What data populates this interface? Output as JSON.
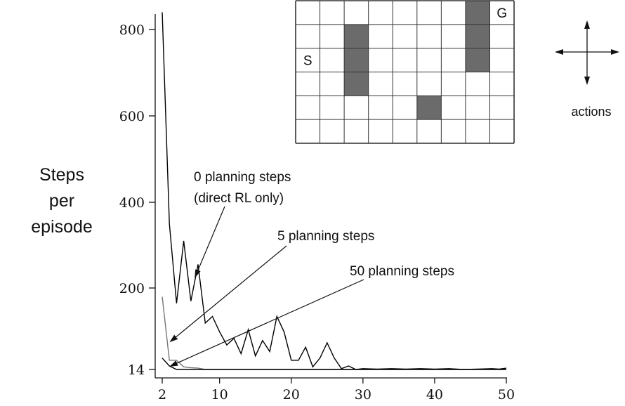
{
  "chart_data": {
    "type": "line",
    "ylabel_lines": [
      "Steps",
      "per",
      "episode"
    ],
    "xlim": [
      2,
      50
    ],
    "x_ticks": [
      2,
      10,
      20,
      30,
      40,
      50
    ],
    "y_ticks": [
      14,
      200,
      400,
      600,
      800
    ],
    "grid": false,
    "series": [
      {
        "name": "0 planning steps",
        "color": "#000000",
        "points": [
          [
            2,
            840
          ],
          [
            3,
            350
          ],
          [
            4,
            165
          ],
          [
            5,
            310
          ],
          [
            6,
            170
          ],
          [
            7,
            255
          ],
          [
            8,
            120
          ],
          [
            9,
            135
          ],
          [
            10,
            100
          ],
          [
            11,
            70
          ],
          [
            12,
            85
          ],
          [
            13,
            50
          ],
          [
            14,
            105
          ],
          [
            15,
            45
          ],
          [
            16,
            80
          ],
          [
            17,
            55
          ],
          [
            18,
            135
          ],
          [
            19,
            100
          ],
          [
            20,
            35
          ],
          [
            21,
            35
          ],
          [
            22,
            65
          ],
          [
            23,
            20
          ],
          [
            24,
            40
          ],
          [
            25,
            75
          ],
          [
            26,
            40
          ],
          [
            27,
            16
          ],
          [
            28,
            22
          ],
          [
            29,
            14
          ],
          [
            30,
            16
          ],
          [
            32,
            15
          ],
          [
            34,
            16
          ],
          [
            36,
            15
          ],
          [
            38,
            16
          ],
          [
            40,
            15
          ],
          [
            42,
            16
          ],
          [
            44,
            14
          ],
          [
            46,
            15
          ],
          [
            48,
            16
          ],
          [
            49,
            15
          ],
          [
            50,
            17
          ]
        ]
      },
      {
        "name": "5 planning steps",
        "color": "#777777",
        "points": [
          [
            2,
            180
          ],
          [
            3,
            35
          ],
          [
            4,
            35
          ],
          [
            5,
            20
          ],
          [
            6,
            18
          ],
          [
            7,
            17
          ],
          [
            8,
            14
          ],
          [
            10,
            14
          ],
          [
            15,
            14
          ],
          [
            20,
            14
          ],
          [
            25,
            14
          ],
          [
            30,
            14
          ],
          [
            35,
            14
          ],
          [
            40,
            14
          ],
          [
            45,
            14
          ],
          [
            50,
            14
          ]
        ]
      },
      {
        "name": "50 planning steps",
        "color": "#000000",
        "points": [
          [
            2,
            40
          ],
          [
            3,
            22
          ],
          [
            4,
            14
          ],
          [
            5,
            14
          ],
          [
            10,
            14
          ],
          [
            20,
            14
          ],
          [
            30,
            14
          ],
          [
            40,
            14
          ],
          [
            50,
            14
          ]
        ]
      }
    ],
    "annotations": [
      {
        "lines": [
          "0 planning steps",
          "(direct RL only)"
        ]
      },
      {
        "lines": [
          "5 planning steps"
        ]
      },
      {
        "lines": [
          "50 planning steps"
        ]
      }
    ]
  },
  "gridworld": {
    "cols": 9,
    "rows": 6,
    "walls": [
      [
        2,
        1
      ],
      [
        2,
        2
      ],
      [
        2,
        3
      ],
      [
        7,
        0
      ],
      [
        7,
        1
      ],
      [
        7,
        2
      ],
      [
        5,
        4
      ]
    ],
    "start": {
      "col": 0,
      "row": 2,
      "label": "S"
    },
    "goal": {
      "col": 8,
      "row": 0,
      "label": "G"
    },
    "wall_color": "#6b6b6b",
    "line_color": "#333333"
  },
  "actions_label": "actions"
}
